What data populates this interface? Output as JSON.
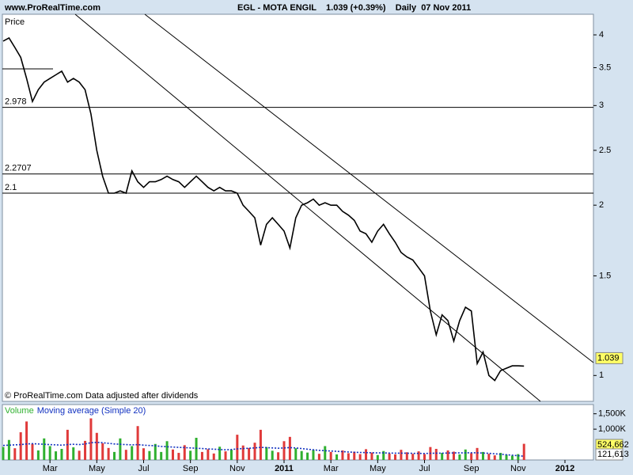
{
  "chart_data": [
    {
      "type": "line",
      "source": "www.ProRealTime.com",
      "title": "EGL - MOTA ENGIL    1.039 (+0.39%)    Daily  07 Nov 2011",
      "ylabel": "Price",
      "footnote": "© ProRealTime.com  Data adjusted after dividends",
      "categories": [
        null,
        null,
        null,
        null,
        null,
        null,
        null,
        null,
        "Mar",
        null,
        null,
        null,
        null,
        null,
        null,
        null,
        "May",
        null,
        null,
        null,
        null,
        null,
        null,
        null,
        "Jul",
        null,
        null,
        null,
        null,
        null,
        null,
        null,
        "Sep",
        null,
        null,
        null,
        null,
        null,
        null,
        null,
        "Nov",
        null,
        null,
        null,
        null,
        null,
        null,
        null,
        "2011",
        null,
        null,
        null,
        null,
        null,
        null,
        null,
        "Mar",
        null,
        null,
        null,
        null,
        null,
        null,
        null,
        "May",
        null,
        null,
        null,
        null,
        null,
        null,
        null,
        "Jul",
        null,
        null,
        null,
        null,
        null,
        null,
        null,
        "Sep",
        null,
        null,
        null,
        null,
        null,
        null,
        null,
        "Nov",
        null,
        null,
        null,
        null,
        null,
        null,
        null,
        "2012"
      ],
      "series": [
        {
          "color": "#000000",
          "values": [
            3.9,
            3.95,
            3.8,
            3.65,
            3.35,
            3.05,
            3.2,
            3.3,
            3.35,
            3.4,
            3.45,
            3.3,
            3.35,
            3.3,
            3.2,
            2.9,
            2.5,
            2.25,
            2.1,
            2.1,
            2.12,
            2.1,
            2.3,
            2.2,
            2.15,
            2.2,
            2.2,
            2.22,
            2.25,
            2.22,
            2.2,
            2.15,
            2.2,
            2.25,
            2.2,
            2.15,
            2.12,
            2.15,
            2.12,
            2.12,
            2.1,
            2.0,
            1.95,
            1.9,
            1.7,
            1.85,
            1.9,
            1.85,
            1.8,
            1.68,
            1.9,
            2.0,
            2.02,
            2.05,
            2.0,
            2.02,
            2.0,
            2.0,
            1.95,
            1.92,
            1.88,
            1.8,
            1.78,
            1.72,
            1.8,
            1.85,
            1.78,
            1.72,
            1.65,
            1.62,
            1.6,
            1.55,
            1.5,
            1.3,
            1.18,
            1.28,
            1.25,
            1.15,
            1.25,
            1.32,
            1.3,
            1.05,
            1.1,
            1.0,
            0.98,
            1.02,
            1.03,
            1.04,
            1.04,
            1.039,
            null,
            null,
            null,
            null,
            null,
            null,
            null
          ]
        }
      ],
      "ylim": [
        0.9,
        4.35
      ],
      "yticks": [
        1,
        1.5,
        2,
        2.5,
        3,
        3.5,
        4
      ],
      "log_scale": true,
      "levels": [
        2.978,
        2.2707,
        2.1
      ]
    },
    {
      "type": "bar",
      "series": [
        {
          "name": "Volume",
          "color": "#2fb02f",
          "down_color": "#e03a3a",
          "values": [
            420000,
            650000,
            380000,
            900000,
            1250000,
            520000,
            310000,
            700000,
            450000,
            280000,
            360000,
            980000,
            410000,
            300000,
            620000,
            1350000,
            880000,
            540000,
            390000,
            260000,
            700000,
            330000,
            450000,
            1100000,
            380000,
            290000,
            520000,
            260000,
            610000,
            340000,
            230000,
            480000,
            300000,
            720000,
            260000,
            350000,
            210000,
            430000,
            280000,
            330000,
            820000,
            470000,
            390000,
            560000,
            980000,
            420000,
            300000,
            250000,
            610000,
            750000,
            380000,
            290000,
            240000,
            330000,
            200000,
            450000,
            260000,
            180000,
            310000,
            220000,
            270000,
            190000,
            350000,
            240000,
            160000,
            290000,
            210000,
            180000,
            330000,
            250000,
            200000,
            280000,
            190000,
            420000,
            360000,
            230000,
            310000,
            270000,
            180000,
            340000,
            220000,
            390000,
            260000,
            200000,
            150000,
            230000,
            170000,
            140000,
            190000,
            524662
          ],
          "value_labels": [
            null,
            null,
            null,
            null,
            null,
            null,
            null,
            null,
            null,
            null,
            null,
            null,
            null,
            null,
            null,
            null,
            null,
            null,
            null,
            null,
            null,
            null,
            null,
            null,
            null,
            null,
            null,
            null,
            null,
            null,
            null,
            null,
            null,
            null,
            null,
            null,
            null,
            null,
            null,
            null,
            null,
            null,
            null,
            null,
            null,
            null,
            null,
            null,
            null,
            null,
            null,
            null,
            null,
            null,
            null,
            null,
            null,
            null,
            null,
            null,
            null,
            null,
            null,
            null,
            null,
            null,
            null,
            null,
            null,
            null,
            null,
            null,
            null,
            null,
            null,
            null,
            null,
            null,
            null,
            null,
            null,
            null,
            null,
            null,
            null,
            null,
            null,
            null,
            null,
            "524,662"
          ]
        },
        {
          "name": "Moving average (Simple 20)",
          "color": "#1030c0",
          "values": [
            470000,
            480000,
            490000,
            500000,
            520000,
            530000,
            520000,
            510000,
            500000,
            490000,
            480000,
            500000,
            510000,
            500000,
            520000,
            560000,
            570000,
            560000,
            540000,
            520000,
            510000,
            500000,
            490000,
            500000,
            480000,
            470000,
            460000,
            440000,
            430000,
            420000,
            410000,
            400000,
            390000,
            380000,
            370000,
            360000,
            350000,
            340000,
            330000,
            340000,
            360000,
            370000,
            380000,
            390000,
            410000,
            400000,
            390000,
            380000,
            390000,
            400000,
            390000,
            370000,
            350000,
            330000,
            310000,
            300000,
            290000,
            280000,
            270000,
            260000,
            250000,
            245000,
            240000,
            235000,
            230000,
            228000,
            225000,
            222000,
            220000,
            218000,
            216000,
            214000,
            212000,
            215000,
            220000,
            222000,
            225000,
            228000,
            230000,
            232000,
            235000,
            232000,
            225000,
            215000,
            200000,
            185000,
            170000,
            155000,
            140000,
            121613
          ],
          "value_labels": [
            null,
            null,
            null,
            null,
            null,
            null,
            null,
            null,
            null,
            null,
            null,
            null,
            null,
            null,
            null,
            null,
            null,
            null,
            null,
            null,
            null,
            null,
            null,
            null,
            null,
            null,
            null,
            null,
            null,
            null,
            null,
            null,
            null,
            null,
            null,
            null,
            null,
            null,
            null,
            null,
            null,
            null,
            null,
            null,
            null,
            null,
            null,
            null,
            null,
            null,
            null,
            null,
            null,
            null,
            null,
            null,
            null,
            null,
            null,
            null,
            null,
            null,
            null,
            null,
            null,
            null,
            null,
            null,
            null,
            null,
            null,
            null,
            null,
            null,
            null,
            null,
            null,
            null,
            null,
            null,
            null,
            null,
            null,
            null,
            null,
            null,
            null,
            null,
            null,
            "121,613"
          ]
        }
      ],
      "ylim": [
        0,
        1800000
      ],
      "yticks": [
        {
          "value": 1500000,
          "label": "1,500K"
        },
        {
          "value": 1000000,
          "label": "1,000K"
        }
      ]
    }
  ]
}
